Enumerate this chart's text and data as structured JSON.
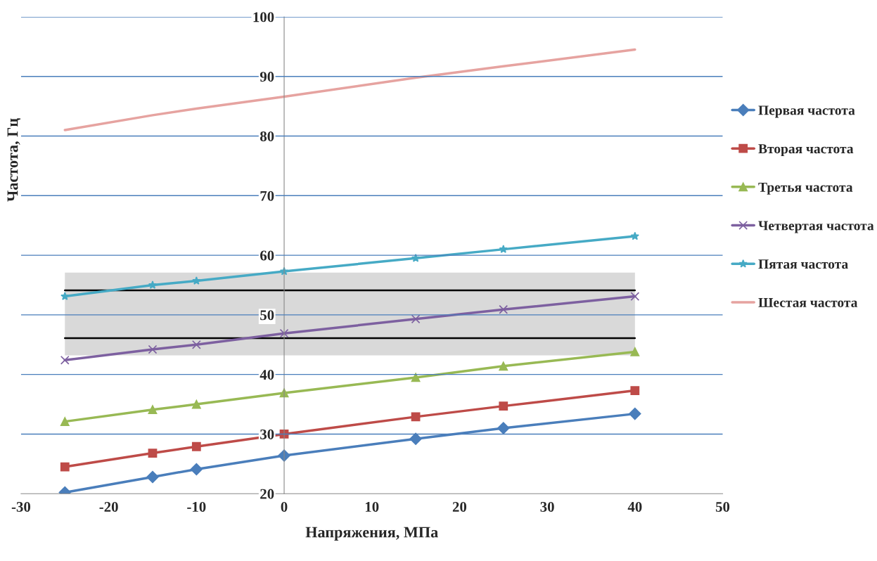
{
  "chart_data": {
    "type": "line",
    "xlabel": "Напряжения, МПа",
    "ylabel": "Частота, Гц",
    "x": [
      -25,
      -15,
      -10,
      0,
      15,
      25,
      40
    ],
    "xlim": [
      -30,
      50
    ],
    "xticks": [
      -30,
      -20,
      -10,
      0,
      10,
      20,
      30,
      40,
      50
    ],
    "ylim": [
      20,
      100
    ],
    "yticks": [
      20,
      30,
      40,
      50,
      60,
      70,
      80,
      90,
      100
    ],
    "grid": "y",
    "legend": "right",
    "series": [
      {
        "name": "Первая частота",
        "color": "#4a7ebb",
        "marker": "diamond",
        "values": [
          20.2,
          22.8,
          24.1,
          26.4,
          29.2,
          31.0,
          33.4
        ]
      },
      {
        "name": "Вторая частота",
        "color": "#be4b48",
        "marker": "square",
        "values": [
          24.5,
          26.8,
          27.9,
          30.0,
          32.9,
          34.7,
          37.3
        ]
      },
      {
        "name": "Третья частота",
        "color": "#98b954",
        "marker": "triangle",
        "values": [
          32.1,
          34.1,
          35.0,
          36.9,
          39.5,
          41.4,
          43.8
        ]
      },
      {
        "name": "Четвертая частота",
        "color": "#7d60a0",
        "marker": "cross",
        "values": [
          42.4,
          44.2,
          45.0,
          46.9,
          49.3,
          50.9,
          53.1
        ]
      },
      {
        "name": "Пятая частота",
        "color": "#46aac5",
        "marker": "star",
        "values": [
          53.1,
          55.0,
          55.7,
          57.3,
          59.5,
          61.0,
          63.2
        ]
      },
      {
        "name": "Шестая частота",
        "color": "#e6a3a0",
        "marker": "none",
        "values": [
          81.0,
          83.5,
          84.6,
          86.6,
          89.8,
          91.7,
          94.5
        ]
      }
    ],
    "bands": [
      {
        "axis": "y",
        "from": 43.2,
        "to": 57.1,
        "color": "#d9d9d9"
      }
    ],
    "ref_lines": [
      {
        "axis": "y",
        "value": 54.1,
        "color": "#000000"
      },
      {
        "axis": "y",
        "value": 46.1,
        "color": "#000000"
      }
    ]
  }
}
